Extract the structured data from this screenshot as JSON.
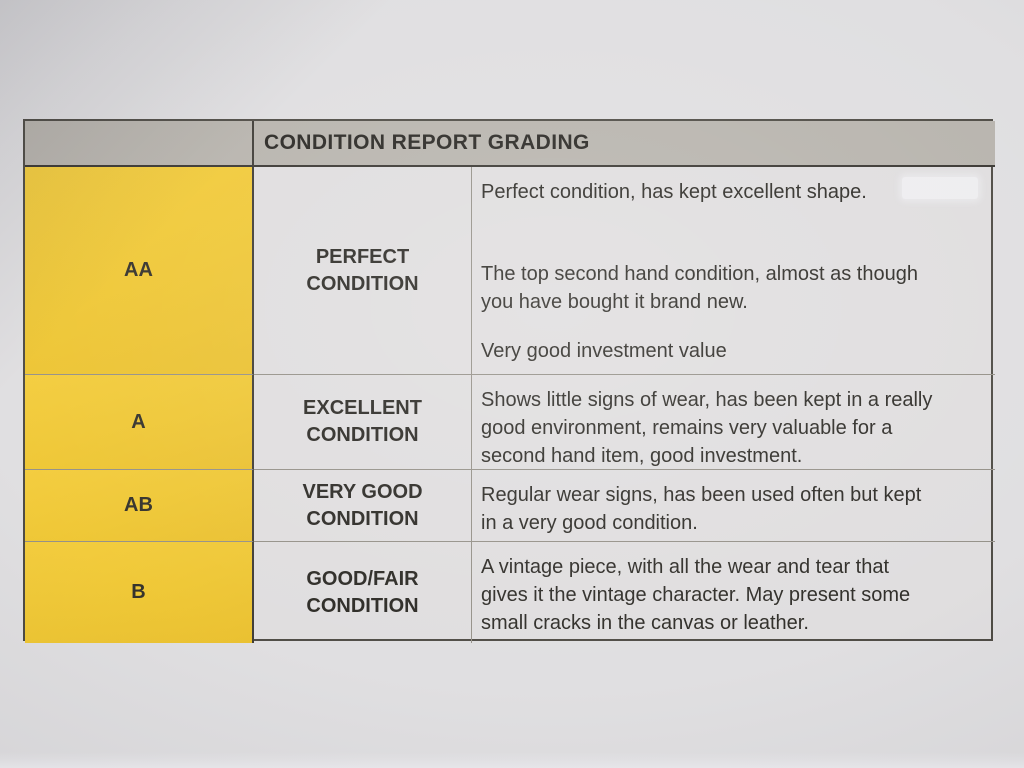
{
  "table": {
    "title": "CONDITION REPORT GRADING",
    "rows": [
      {
        "grade": "AA",
        "label": "PERFECT\nCONDITION",
        "descriptions": [
          "Perfect condition, has kept excellent shape.",
          "The top second hand condition, almost as though\nyou have bought it brand new.",
          "Very good investment value"
        ]
      },
      {
        "grade": "A",
        "label": "EXCELLENT\nCONDITION",
        "descriptions": [
          "Shows little signs of wear, has been kept in a really\ngood environment, remains very valuable for a\nsecond hand item, good investment."
        ]
      },
      {
        "grade": "AB",
        "label": "VERY GOOD\nCONDITION",
        "descriptions": [
          "Regular wear signs, has been used often but kept\nin a very good condition."
        ]
      },
      {
        "grade": "B",
        "label": "GOOD/FAIR\nCONDITION",
        "descriptions": [
          "A vintage piece, with all the wear and tear that\ngives it the vintage character. May present some\nsmall cracks in the canvas or leather."
        ]
      }
    ]
  },
  "colors": {
    "grade_column_yellow": "#EEC42A",
    "header_bar_gray": "#B4B0A9",
    "cell_background": "#DEDCDD",
    "paper_background": "#DEDDDF",
    "text": "#23211C",
    "border_dark": "#35322C",
    "border_light": "#8F8B82"
  }
}
